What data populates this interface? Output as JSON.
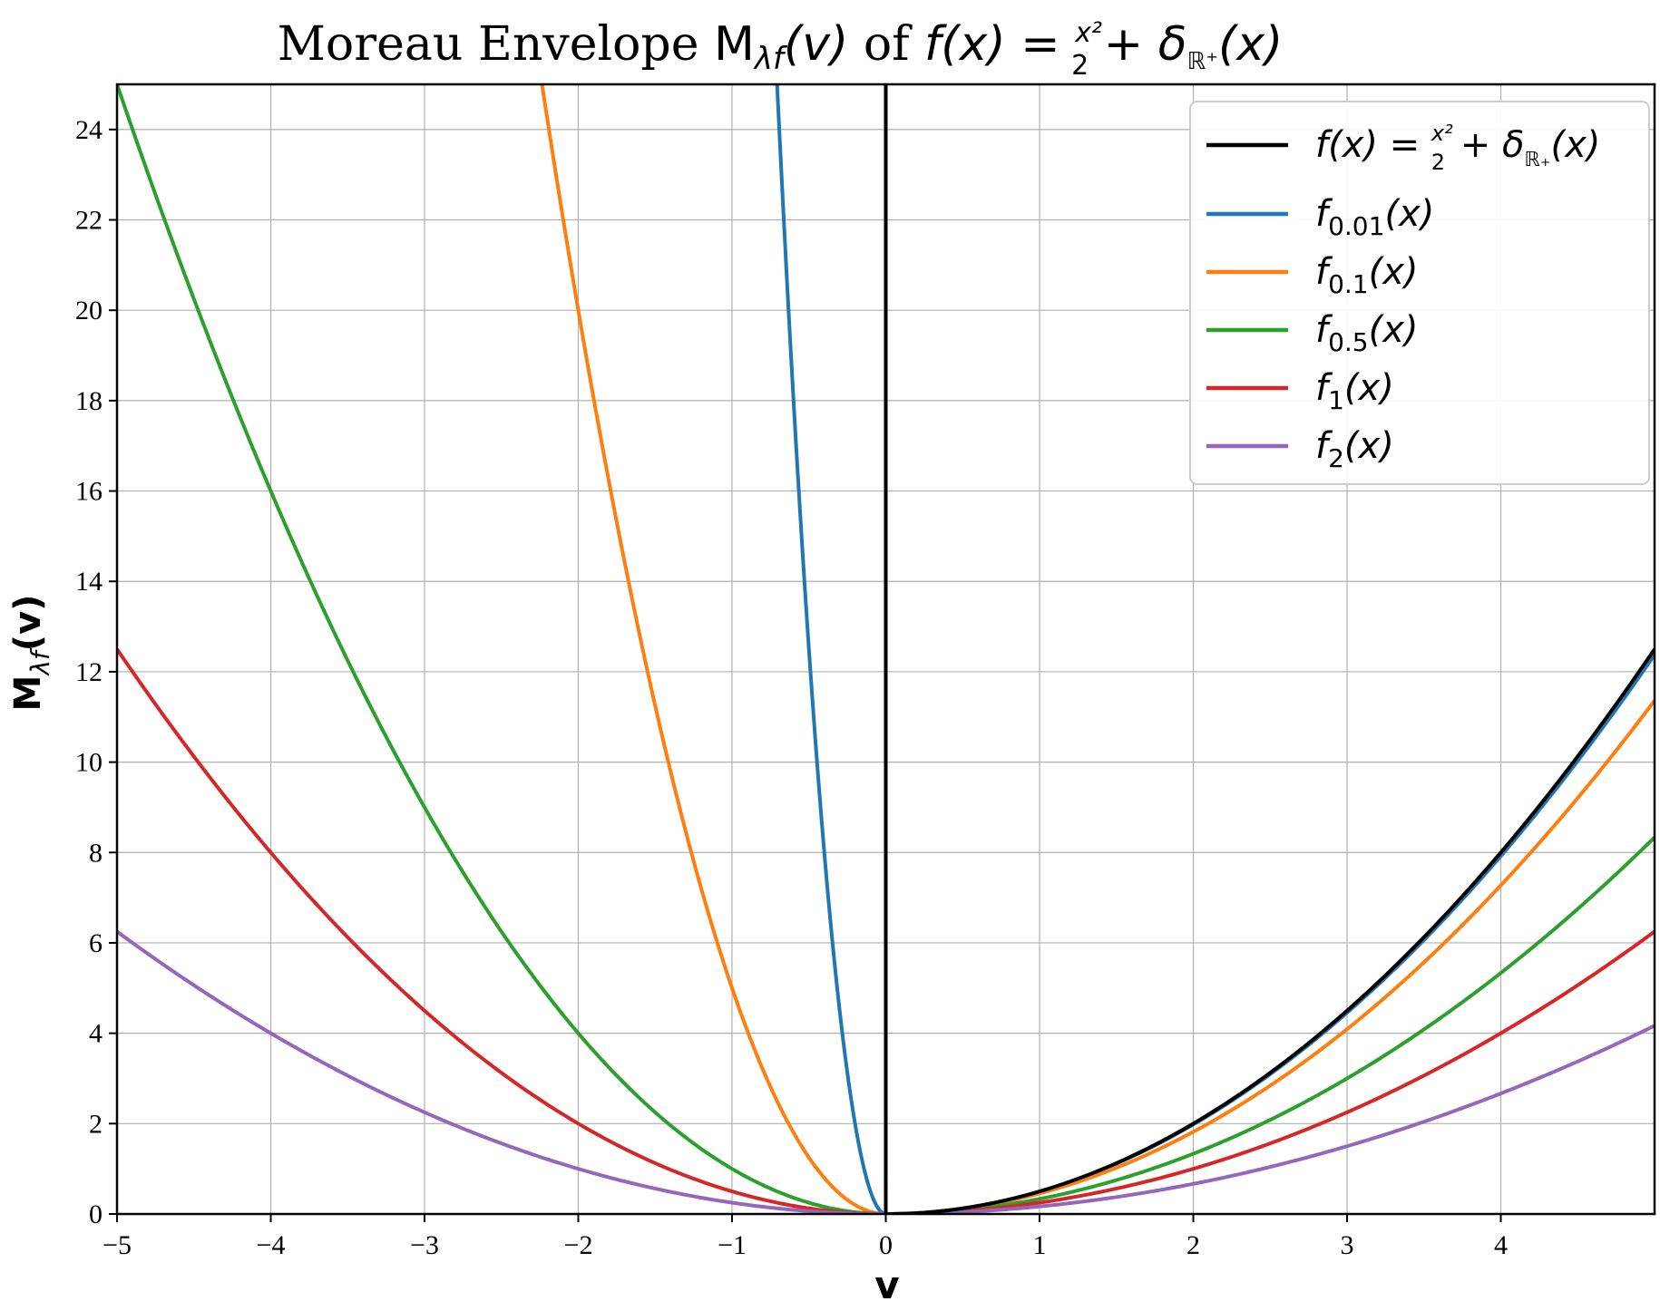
{
  "chart_data": {
    "type": "line",
    "title": {
      "prefix": "Moreau Envelope ",
      "envelope_symbol": "M",
      "envelope_subscript": "λf",
      "envelope_arg": "(v)",
      "connector": " of ",
      "func": "f(x) = ",
      "frac_num": "x²",
      "frac_den": "2",
      "plus": " + δ",
      "delta_subscript": "ℝ⁺",
      "tail": "(x)"
    },
    "xlabel": "v",
    "ylabel": {
      "symbol": "M",
      "subscript": "λf",
      "arg": "(v)"
    },
    "xlim": [
      -5,
      5
    ],
    "ylim": [
      0,
      25
    ],
    "xticks": [
      -5,
      -4,
      -3,
      -2,
      -1,
      0,
      1,
      2,
      3,
      4
    ],
    "xtick_labels": [
      "−5",
      "−4",
      "−3",
      "−2",
      "−1",
      "0",
      "1",
      "2",
      "3",
      "4"
    ],
    "yticks": [
      0,
      2,
      4,
      6,
      8,
      10,
      12,
      14,
      16,
      18,
      20,
      22,
      24
    ],
    "ytick_labels": [
      "0",
      "2",
      "4",
      "6",
      "8",
      "10",
      "12",
      "14",
      "16",
      "18",
      "20",
      "22",
      "24"
    ],
    "grid": true,
    "legend_position": "top-right",
    "x_sampling": {
      "start": -5,
      "end": 5,
      "step": 0.02
    },
    "series": [
      {
        "key": "f",
        "name": "f(x) = x²/2 + δℝ₊(x)",
        "legend": {
          "main": "f(x) = ",
          "frac_num": "x²",
          "frac_den": "2",
          "plus": " + δ",
          "sub": "ℝ₊",
          "tail": "(x)"
        },
        "color": "#000000",
        "lambda": 0,
        "formula": "y = x²/2 for x ≥ 0 (vertical line at x = 0)"
      },
      {
        "key": "f001",
        "name": "f0.01(x)",
        "legend": {
          "main": "f",
          "sub": "0.01",
          "tail": "(x)"
        },
        "color": "#1f77b4",
        "lambda": 0.01,
        "formula": "y = v²/(2λ) for v < 0; y = v²/(2(1+λ)) for v ≥ 0"
      },
      {
        "key": "f01",
        "name": "f0.1(x)",
        "legend": {
          "main": "f",
          "sub": "0.1",
          "tail": "(x)"
        },
        "color": "#ff7f0e",
        "lambda": 0.1,
        "formula": "y = v²/(2λ) for v < 0; y = v²/(2(1+λ)) for v ≥ 0"
      },
      {
        "key": "f05",
        "name": "f0.5(x)",
        "legend": {
          "main": "f",
          "sub": "0.5",
          "tail": "(x)"
        },
        "color": "#2ca02c",
        "lambda": 0.5,
        "formula": "y = v²/(2λ) for v < 0; y = v²/(2(1+λ)) for v ≥ 0"
      },
      {
        "key": "f1",
        "name": "f1(x)",
        "legend": {
          "main": "f",
          "sub": "1",
          "tail": "(x)"
        },
        "color": "#d62728",
        "lambda": 1,
        "formula": "y = v²/(2λ) for v < 0; y = v²/(2(1+λ)) for v ≥ 0"
      },
      {
        "key": "f2",
        "name": "f2(x)",
        "legend": {
          "main": "f",
          "sub": "2",
          "tail": "(x)"
        },
        "color": "#9467bd",
        "lambda": 2,
        "formula": "y = v²/(2λ) for v < 0; y = v²/(2(1+λ)) for v ≥ 0"
      }
    ],
    "sample_points": [
      {
        "series": "f0.01(x)",
        "points": [
          [
            -0.7,
            24.5
          ],
          [
            -0.5,
            12.5
          ],
          [
            -0.2,
            2.0
          ],
          [
            0,
            0
          ],
          [
            2,
            1.98
          ],
          [
            4,
            7.92
          ],
          [
            4.98,
            12.28
          ]
        ]
      },
      {
        "series": "f0.1(x)",
        "points": [
          [
            -2.2,
            24.2
          ],
          [
            -2,
            20
          ],
          [
            -1,
            5
          ],
          [
            0,
            0
          ],
          [
            2,
            1.82
          ],
          [
            4,
            7.27
          ],
          [
            4.98,
            11.27
          ]
        ]
      },
      {
        "series": "f0.5(x)",
        "points": [
          [
            -5,
            25
          ],
          [
            -4,
            16
          ],
          [
            -3,
            9
          ],
          [
            -2,
            4
          ],
          [
            0,
            0
          ],
          [
            2,
            1.33
          ],
          [
            4,
            5.33
          ],
          [
            4.98,
            8.27
          ]
        ]
      },
      {
        "series": "f1(x)",
        "points": [
          [
            -5,
            12.5
          ],
          [
            -4,
            8
          ],
          [
            -3,
            4.5
          ],
          [
            -2,
            2
          ],
          [
            0,
            0
          ],
          [
            2,
            1
          ],
          [
            4,
            4
          ],
          [
            4.98,
            6.2
          ]
        ]
      },
      {
        "series": "f2(x)",
        "points": [
          [
            -5,
            6.25
          ],
          [
            -4,
            4
          ],
          [
            -3,
            2.25
          ],
          [
            -2,
            1
          ],
          [
            0,
            0
          ],
          [
            2,
            0.67
          ],
          [
            4,
            2.67
          ],
          [
            4.98,
            4.13
          ]
        ]
      },
      {
        "series": "f(x) = x²/2 + δℝ₊(x)",
        "points": [
          [
            0,
            0
          ],
          [
            0,
            25
          ],
          [
            2,
            2
          ],
          [
            4,
            8
          ],
          [
            4.98,
            12.4
          ]
        ]
      }
    ]
  }
}
